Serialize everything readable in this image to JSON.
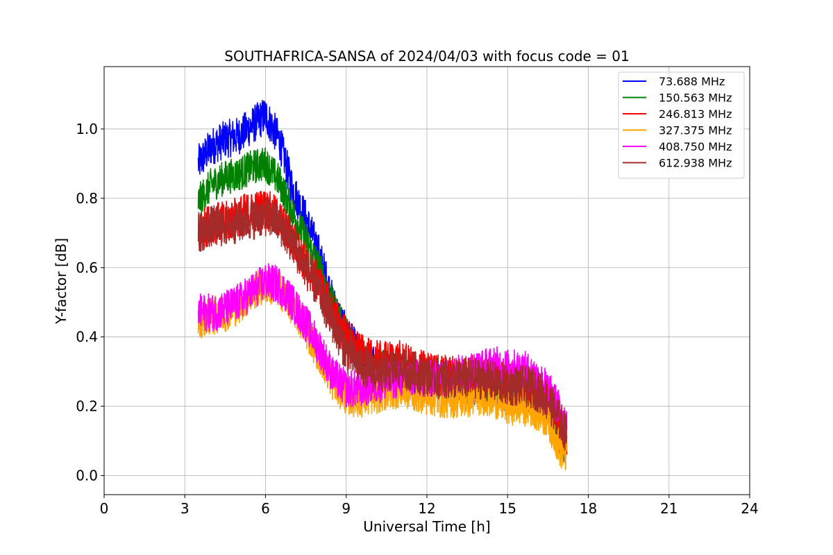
{
  "chart_data": {
    "type": "line",
    "title": "SOUTHAFRICA-SANSA of 2024/04/03 with focus code = 01",
    "xlabel": "Universal Time [h]",
    "ylabel": "Y-factor [dB]",
    "xlim": [
      0,
      24
    ],
    "ylim": [
      -0.055,
      1.18
    ],
    "xticks": [
      0,
      3,
      6,
      9,
      12,
      15,
      18,
      21,
      24
    ],
    "xtick_labels": [
      "0",
      "3",
      "6",
      "9",
      "12",
      "15",
      "18",
      "21",
      "24"
    ],
    "yticks": [
      0.0,
      0.2,
      0.4,
      0.6,
      0.8,
      1.0
    ],
    "ytick_labels": [
      "0.0",
      "0.2",
      "0.4",
      "0.6",
      "0.8",
      "1.0"
    ],
    "grid": true,
    "legend_position": "top-right",
    "x": [
      3.5,
      4.0,
      4.5,
      5.0,
      5.5,
      6.0,
      6.5,
      7.0,
      7.5,
      8.0,
      8.5,
      9.0,
      9.5,
      10.0,
      10.5,
      11.0,
      11.5,
      12.0,
      12.5,
      13.0,
      13.5,
      14.0,
      14.5,
      15.0,
      15.5,
      16.0,
      16.5,
      17.0,
      17.2
    ],
    "series": [
      {
        "name": " 73.688 MHz",
        "color": "#0000ff",
        "noise": 0.055,
        "values": [
          0.9,
          0.95,
          0.97,
          0.98,
          1.01,
          1.04,
          0.97,
          0.83,
          0.74,
          0.64,
          0.5,
          0.41,
          0.35,
          0.32,
          0.3,
          0.3,
          0.29,
          0.28,
          0.27,
          0.27,
          0.26,
          0.26,
          0.25,
          0.24,
          0.24,
          0.23,
          0.2,
          0.1,
          0.08
        ]
      },
      {
        "name": "150.563 MHz",
        "color": "#008000",
        "noise": 0.05,
        "values": [
          0.79,
          0.84,
          0.86,
          0.87,
          0.89,
          0.9,
          0.85,
          0.76,
          0.68,
          0.6,
          0.49,
          0.41,
          0.35,
          0.32,
          0.31,
          0.3,
          0.29,
          0.28,
          0.27,
          0.27,
          0.26,
          0.26,
          0.25,
          0.24,
          0.24,
          0.23,
          0.2,
          0.1,
          0.08
        ]
      },
      {
        "name": "246.813 MHz",
        "color": "#ff0000",
        "noise": 0.06,
        "values": [
          0.7,
          0.73,
          0.73,
          0.75,
          0.76,
          0.77,
          0.74,
          0.68,
          0.61,
          0.55,
          0.47,
          0.4,
          0.35,
          0.33,
          0.33,
          0.33,
          0.31,
          0.3,
          0.29,
          0.29,
          0.29,
          0.29,
          0.28,
          0.27,
          0.27,
          0.26,
          0.22,
          0.12,
          0.1
        ]
      },
      {
        "name": "327.375 MHz",
        "color": "#ffa500",
        "noise": 0.055,
        "values": [
          0.45,
          0.46,
          0.47,
          0.49,
          0.53,
          0.55,
          0.54,
          0.49,
          0.42,
          0.35,
          0.27,
          0.23,
          0.22,
          0.23,
          0.24,
          0.25,
          0.24,
          0.23,
          0.22,
          0.22,
          0.22,
          0.23,
          0.22,
          0.2,
          0.2,
          0.19,
          0.16,
          0.07,
          0.06
        ]
      },
      {
        "name": "408.750 MHz",
        "color": "#ff00ff",
        "noise": 0.055,
        "values": [
          0.47,
          0.47,
          0.48,
          0.5,
          0.53,
          0.56,
          0.55,
          0.5,
          0.44,
          0.37,
          0.29,
          0.25,
          0.25,
          0.26,
          0.27,
          0.28,
          0.28,
          0.28,
          0.28,
          0.29,
          0.3,
          0.31,
          0.32,
          0.31,
          0.31,
          0.29,
          0.25,
          0.18,
          0.15
        ]
      },
      {
        "name": "612.938 MHz",
        "color": "#a52a2a",
        "noise": 0.06,
        "values": [
          0.7,
          0.72,
          0.72,
          0.73,
          0.74,
          0.75,
          0.73,
          0.67,
          0.6,
          0.53,
          0.44,
          0.36,
          0.32,
          0.3,
          0.3,
          0.31,
          0.3,
          0.29,
          0.28,
          0.28,
          0.28,
          0.28,
          0.27,
          0.26,
          0.26,
          0.25,
          0.22,
          0.15,
          0.12
        ]
      }
    ]
  }
}
